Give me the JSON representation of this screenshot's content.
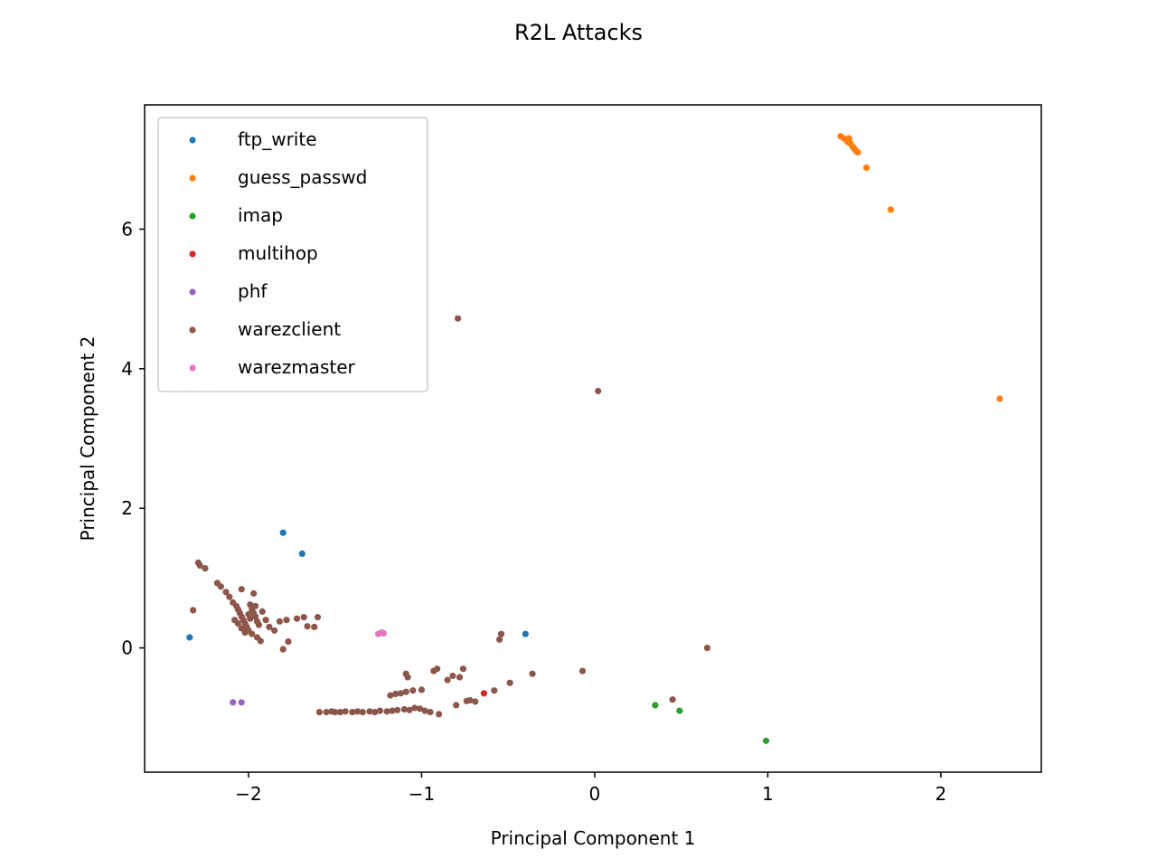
{
  "chart_data": {
    "type": "scatter",
    "title": "R2L Attacks",
    "xlabel": "Principal Component 1",
    "ylabel": "Principal Component 2",
    "xlim": [
      -2.6,
      2.58
    ],
    "ylim": [
      -1.78,
      7.78
    ],
    "xticks": [
      -2,
      -1,
      0,
      1,
      2
    ],
    "xtick_labels": [
      "−2",
      "−1",
      "0",
      "1",
      "2"
    ],
    "yticks": [
      0,
      2,
      4,
      6
    ],
    "ytick_labels": [
      "0",
      "2",
      "4",
      "6"
    ],
    "grid": false,
    "legend_position": "top-left",
    "series": [
      {
        "name": "ftp_write",
        "color": "#1f77b4",
        "points": [
          [
            -2.34,
            0.15
          ],
          [
            -1.8,
            1.65
          ],
          [
            -1.69,
            1.35
          ],
          [
            -0.4,
            0.2
          ]
        ]
      },
      {
        "name": "guess_passwd",
        "color": "#ff7f0e",
        "points": [
          [
            1.42,
            7.33
          ],
          [
            1.44,
            7.3
          ],
          [
            1.46,
            7.25
          ],
          [
            1.47,
            7.3
          ],
          [
            1.48,
            7.22
          ],
          [
            1.49,
            7.18
          ],
          [
            1.5,
            7.15
          ],
          [
            1.51,
            7.12
          ],
          [
            1.52,
            7.1
          ],
          [
            1.57,
            6.88
          ],
          [
            1.71,
            6.28
          ],
          [
            2.34,
            3.57
          ]
        ]
      },
      {
        "name": "imap",
        "color": "#2ca02c",
        "points": [
          [
            0.35,
            -0.82
          ],
          [
            0.49,
            -0.9
          ],
          [
            0.99,
            -1.33
          ]
        ]
      },
      {
        "name": "multihop",
        "color": "#d62728",
        "points": [
          [
            -0.64,
            -0.65
          ]
        ]
      },
      {
        "name": "phf",
        "color": "#9467bd",
        "points": [
          [
            -2.09,
            -0.78
          ],
          [
            -2.04,
            -0.78
          ]
        ]
      },
      {
        "name": "warezclient",
        "color": "#8c564b",
        "points": [
          [
            -2.32,
            0.54
          ],
          [
            -2.29,
            1.22
          ],
          [
            -2.28,
            1.18
          ],
          [
            -2.25,
            1.14
          ],
          [
            -2.18,
            0.93
          ],
          [
            -2.16,
            0.88
          ],
          [
            -2.13,
            0.8
          ],
          [
            -2.11,
            0.73
          ],
          [
            -2.09,
            0.65
          ],
          [
            -2.07,
            0.6
          ],
          [
            -2.06,
            0.55
          ],
          [
            -2.05,
            0.5
          ],
          [
            -2.04,
            0.45
          ],
          [
            -2.03,
            0.4
          ],
          [
            -2.02,
            0.35
          ],
          [
            -2.01,
            0.3
          ],
          [
            -2.0,
            0.25
          ],
          [
            -1.99,
            0.62
          ],
          [
            -1.98,
            0.55
          ],
          [
            -1.97,
            0.5
          ],
          [
            -1.96,
            0.45
          ],
          [
            -1.95,
            0.38
          ],
          [
            -1.94,
            0.33
          ],
          [
            -2.08,
            0.4
          ],
          [
            -2.06,
            0.35
          ],
          [
            -2.04,
            0.28
          ],
          [
            -2.02,
            0.22
          ],
          [
            -1.98,
            0.2
          ],
          [
            -1.95,
            0.15
          ],
          [
            -2.04,
            0.84
          ],
          [
            -1.97,
            0.78
          ],
          [
            -1.92,
            0.52
          ],
          [
            -1.9,
            0.4
          ],
          [
            -1.88,
            0.3
          ],
          [
            -1.85,
            0.25
          ],
          [
            -1.82,
            0.38
          ],
          [
            -1.8,
            -0.02
          ],
          [
            -1.78,
            0.4
          ],
          [
            -1.77,
            0.09
          ],
          [
            -1.72,
            0.42
          ],
          [
            -1.68,
            0.44
          ],
          [
            -1.66,
            0.31
          ],
          [
            -1.6,
            0.44
          ],
          [
            -1.62,
            0.3
          ],
          [
            -1.93,
            0.1
          ],
          [
            -2.0,
            0.48
          ],
          [
            -1.99,
            0.42
          ],
          [
            -1.96,
            0.6
          ],
          [
            -0.79,
            4.72
          ],
          [
            0.02,
            3.68
          ],
          [
            -1.59,
            -0.92
          ],
          [
            -1.55,
            -0.92
          ],
          [
            -1.52,
            -0.91
          ],
          [
            -1.5,
            -0.92
          ],
          [
            -1.47,
            -0.92
          ],
          [
            -1.44,
            -0.91
          ],
          [
            -1.4,
            -0.92
          ],
          [
            -1.37,
            -0.91
          ],
          [
            -1.34,
            -0.92
          ],
          [
            -1.3,
            -0.91
          ],
          [
            -1.27,
            -0.92
          ],
          [
            -1.24,
            -0.9
          ],
          [
            -1.2,
            -0.91
          ],
          [
            -1.17,
            -0.9
          ],
          [
            -1.14,
            -0.89
          ],
          [
            -1.1,
            -0.88
          ],
          [
            -1.07,
            -0.89
          ],
          [
            -1.04,
            -0.86
          ],
          [
            -1.01,
            -0.87
          ],
          [
            -0.98,
            -0.9
          ],
          [
            -0.95,
            -0.92
          ],
          [
            -0.9,
            -0.95
          ],
          [
            -1.18,
            -0.68
          ],
          [
            -1.15,
            -0.66
          ],
          [
            -1.12,
            -0.65
          ],
          [
            -1.09,
            -0.63
          ],
          [
            -1.05,
            -0.61
          ],
          [
            -1.0,
            -0.6
          ],
          [
            -1.08,
            -0.42
          ],
          [
            -1.09,
            -0.37
          ],
          [
            -0.93,
            -0.33
          ],
          [
            -0.91,
            -0.3
          ],
          [
            -0.85,
            -0.46
          ],
          [
            -0.82,
            -0.4
          ],
          [
            -0.78,
            -0.42
          ],
          [
            -0.76,
            -0.3
          ],
          [
            -0.74,
            -0.76
          ],
          [
            -0.72,
            -0.75
          ],
          [
            -0.8,
            -0.82
          ],
          [
            -0.69,
            -0.77
          ],
          [
            -0.58,
            -0.61
          ],
          [
            -0.55,
            0.12
          ],
          [
            -0.54,
            0.2
          ],
          [
            -0.49,
            -0.5
          ],
          [
            -0.36,
            -0.37
          ],
          [
            -0.07,
            -0.33
          ],
          [
            0.45,
            -0.74
          ],
          [
            0.65,
            0.0
          ]
        ]
      },
      {
        "name": "warezmaster",
        "color": "#e377c2",
        "points": [
          [
            -1.25,
            0.2
          ],
          [
            -1.24,
            0.21
          ],
          [
            -1.23,
            0.22
          ],
          [
            -1.22,
            0.21
          ]
        ]
      }
    ]
  }
}
